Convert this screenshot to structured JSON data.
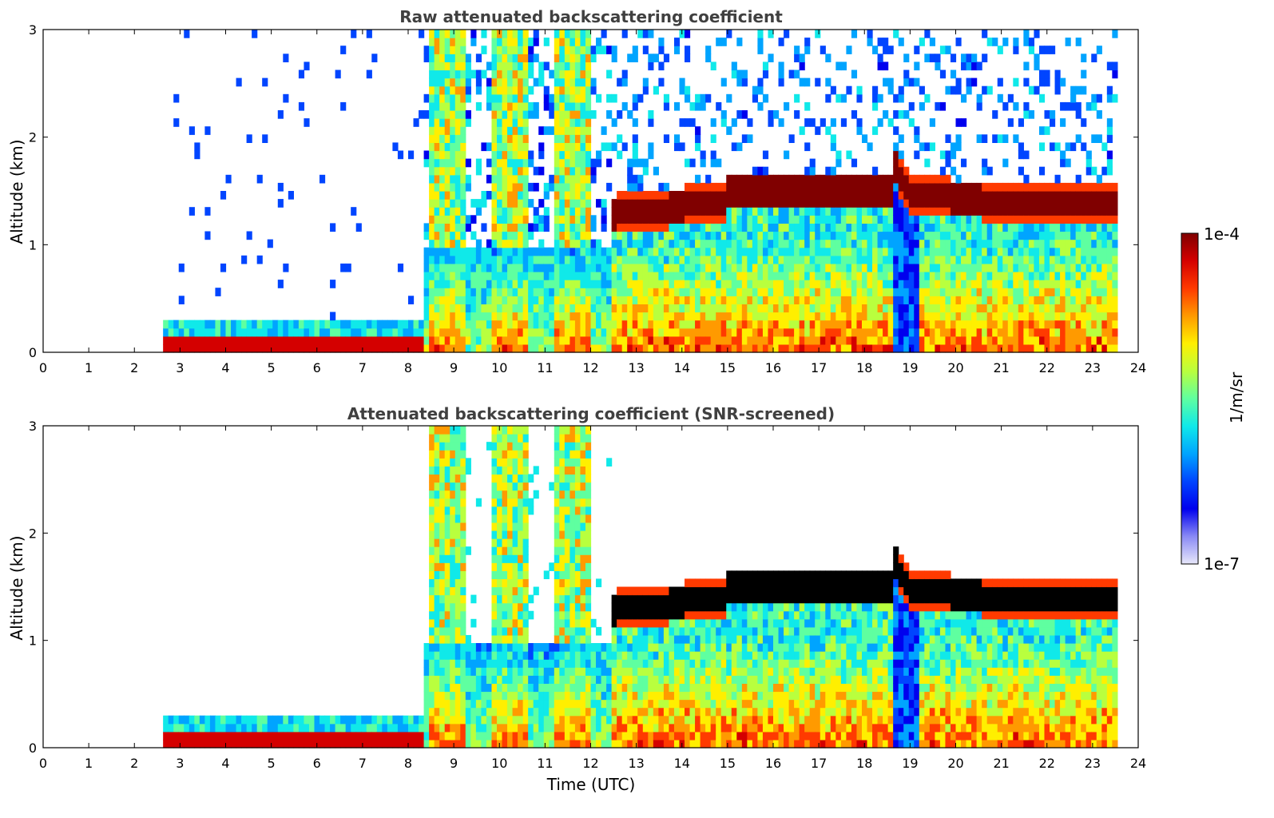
{
  "chart_data": [
    {
      "type": "heatmap",
      "title": "Raw attenuated backscattering coefficient",
      "xlabel": "",
      "ylabel": "Altitude (km)",
      "xlim": [
        0,
        24
      ],
      "ylim": [
        0,
        3
      ],
      "xticks": [
        "0",
        "1",
        "2",
        "3",
        "4",
        "5",
        "6",
        "7",
        "8",
        "9",
        "10",
        "11",
        "12",
        "13",
        "14",
        "15",
        "16",
        "17",
        "18",
        "19",
        "20",
        "21",
        "22",
        "23",
        "24"
      ],
      "yticks": [
        "0",
        "1",
        "2",
        "3"
      ],
      "data_start_hour": 2.6,
      "data_end_hour": 23.5,
      "cloud_layer": {
        "start_hour": 12.5,
        "end_hour": 23.5,
        "base_km": 1.2,
        "top_km": 1.6
      },
      "screened": false
    },
    {
      "type": "heatmap",
      "title": "Attenuated backscattering coefficient (SNR-screened)",
      "xlabel": "Time (UTC)",
      "ylabel": "Altitude (km)",
      "xlim": [
        0,
        24
      ],
      "ylim": [
        0,
        3
      ],
      "xticks": [
        "0",
        "1",
        "2",
        "3",
        "4",
        "5",
        "6",
        "7",
        "8",
        "9",
        "10",
        "11",
        "12",
        "13",
        "14",
        "15",
        "16",
        "17",
        "18",
        "19",
        "20",
        "21",
        "22",
        "23",
        "24"
      ],
      "yticks": [
        "0",
        "1",
        "2",
        "3"
      ],
      "data_start_hour": 2.6,
      "data_end_hour": 23.5,
      "cloud_layer": {
        "start_hour": 12.5,
        "end_hour": 23.5,
        "base_km": 1.2,
        "top_km": 1.6
      },
      "screened": true
    }
  ],
  "colorbar": {
    "min_label": "1e-7",
    "max_label": "1e-4",
    "label": "1/m/sr",
    "scale": "log",
    "colors": [
      "#800000",
      "#d40000",
      "#ff3a00",
      "#ff9a00",
      "#ffef00",
      "#b9ff3e",
      "#5fffa0",
      "#10e9e9",
      "#00a4ff",
      "#0045ff",
      "#0000ee",
      "#8a8af5",
      "#e8e8fa"
    ]
  }
}
